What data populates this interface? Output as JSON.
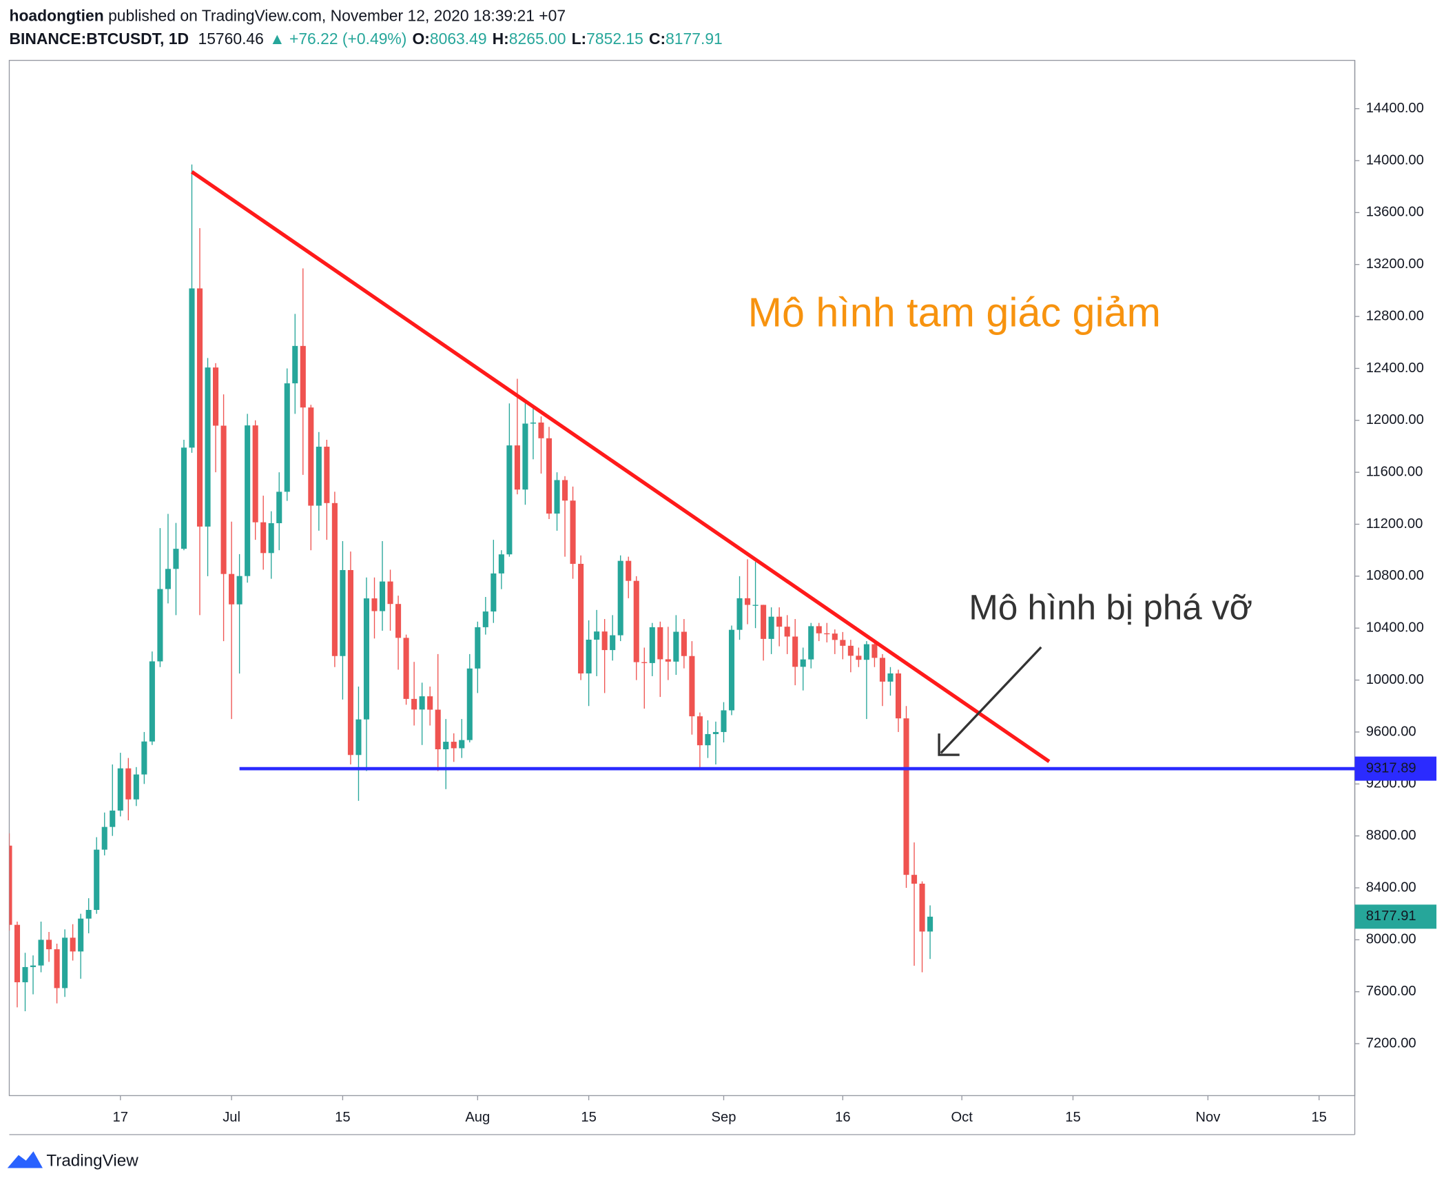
{
  "header": {
    "author": "hoadongtien",
    "published": "published on TradingView.com, November 12, 2020 18:39:21 +07",
    "symbol": "BINANCE:BTCUSDT, 1D",
    "price": "15760.46",
    "change": "▲ +76.22 (+0.49%)",
    "ohlc": [
      {
        "label": "O:",
        "value": "8063.49"
      },
      {
        "label": "H:",
        "value": "8265.00"
      },
      {
        "label": "L:",
        "value": "7852.15"
      },
      {
        "label": "C:",
        "value": "8177.91"
      }
    ]
  },
  "footer": {
    "brand": "TradingView"
  },
  "chart_data": {
    "type": "candlestick",
    "up_color": "#26a69a",
    "down_color": "#ef5350",
    "open": [
      8725,
      8115,
      7673,
      7790,
      7802,
      8000,
      7927,
      7628,
      8016,
      7910,
      8163,
      8230,
      8694,
      8869,
      8995,
      9320,
      9081,
      9273,
      9527,
      10144,
      10701,
      10856,
      11011,
      11790,
      13016,
      11182,
      12407,
      11959,
      10817,
      10583,
      10801,
      11961,
      11215,
      10978,
      11208,
      11450,
      12285,
      12573,
      12099,
      11343,
      11797,
      11363,
      10185,
      10847,
      9423,
      9697,
      10629,
      10531,
      10759,
      10586,
      10325,
      9855,
      9773,
      9875,
      9772,
      9467,
      9525,
      9475,
      9538,
      10089,
      10407,
      10528,
      10821,
      10968,
      11807,
      11467,
      11975,
      11983,
      11862,
      11282,
      11540,
      11382,
      10895,
      10051,
      10311,
      10374,
      10231,
      10345,
      10918,
      10764,
      10138,
      10131,
      10407,
      10160,
      10142,
      10372,
      10185,
      9721,
      9498,
      9584,
      9600,
      9767,
      10387,
      10630,
      10579,
      10579,
      10317,
      10488,
      10411,
      10335,
      10102,
      10159,
      10415,
      10360,
      10358,
      10309,
      10264,
      10187,
      10156,
      10276,
      10171,
      9988,
      10051,
      9705,
      8500,
      8432,
      8063.49
    ],
    "high": [
      8820,
      8140,
      7900,
      7880,
      8140,
      8060,
      7970,
      8080,
      8120,
      8200,
      8320,
      8790,
      8980,
      9350,
      9440,
      9400,
      9330,
      9600,
      10220,
      11170,
      11280,
      11210,
      11850,
      13970,
      13480,
      12480,
      12440,
      12200,
      11220,
      10970,
      12050,
      12000,
      11420,
      11300,
      11600,
      12400,
      12820,
      13170,
      12120,
      11910,
      11850,
      11450,
      11070,
      10990,
      9950,
      10790,
      10790,
      11070,
      10850,
      10650,
      10350,
      10140,
      9980,
      9950,
      10200,
      9700,
      9590,
      9700,
      10200,
      10450,
      10640,
      11080,
      11000,
      12130,
      12320,
      12130,
      12100,
      12030,
      11950,
      11600,
      11570,
      11490,
      10960,
      10460,
      10540,
      10470,
      10500,
      10960,
      10950,
      10800,
      10250,
      10440,
      10450,
      10410,
      10500,
      10470,
      10300,
      9750,
      9690,
      9680,
      9830,
      10420,
      10800,
      10930,
      10910,
      10580,
      10560,
      10560,
      10500,
      10470,
      10250,
      10440,
      10440,
      10440,
      10390,
      10370,
      10310,
      10250,
      10300,
      10300,
      10200,
      10100,
      10080,
      9800,
      8750,
      8450,
      8265
    ],
    "low": [
      8070,
      7480,
      7450,
      7580,
      7750,
      7830,
      7510,
      7560,
      7840,
      7700,
      8050,
      8200,
      8650,
      8800,
      8950,
      8920,
      9030,
      9200,
      9500,
      10100,
      10590,
      10500,
      11000,
      11750,
      10500,
      10800,
      11600,
      10300,
      9700,
      10050,
      10750,
      11080,
      10850,
      10780,
      11000,
      11380,
      12050,
      11580,
      11000,
      11150,
      11080,
      10100,
      9850,
      9350,
      9070,
      9300,
      10320,
      10380,
      10380,
      10080,
      9810,
      9650,
      9500,
      9650,
      9300,
      9160,
      9370,
      9400,
      9520,
      9900,
      10350,
      10440,
      10700,
      10950,
      11430,
      11350,
      11700,
      11590,
      11240,
      11150,
      10950,
      10780,
      10000,
      9800,
      10030,
      9900,
      10150,
      10300,
      10630,
      10000,
      9780,
      10030,
      9870,
      10000,
      10040,
      10090,
      9580,
      9320,
      9400,
      9350,
      9520,
      9730,
      10310,
      10430,
      10400,
      10150,
      10200,
      10260,
      10200,
      9960,
      9920,
      10090,
      10300,
      10290,
      10200,
      10160,
      10060,
      10100,
      9700,
      10100,
      9800,
      9880,
      9600,
      8400,
      7800,
      7750,
      7852.15
    ],
    "close": [
      8115,
      7673,
      7790,
      7802,
      8000,
      7927,
      7628,
      8016,
      7910,
      8163,
      8230,
      8694,
      8869,
      8995,
      9320,
      9081,
      9273,
      9527,
      10144,
      10701,
      10856,
      11011,
      11790,
      13016,
      11182,
      12407,
      11959,
      10817,
      10583,
      10801,
      11961,
      11215,
      10978,
      11208,
      11450,
      12285,
      12573,
      12099,
      11343,
      11797,
      11363,
      10185,
      10847,
      9423,
      9697,
      10629,
      10531,
      10759,
      10586,
      10325,
      9855,
      9773,
      9875,
      9772,
      9467,
      9525,
      9475,
      9538,
      10089,
      10407,
      10528,
      10821,
      10968,
      11807,
      11467,
      11975,
      11983,
      11862,
      11282,
      11540,
      11382,
      10895,
      10051,
      10311,
      10374,
      10231,
      10345,
      10918,
      10764,
      10138,
      10131,
      10407,
      10160,
      10142,
      10372,
      10185,
      9721,
      9498,
      9584,
      9600,
      9767,
      10387,
      10630,
      10579,
      10579,
      10317,
      10488,
      10411,
      10335,
      10102,
      10159,
      10415,
      10360,
      10358,
      10309,
      10264,
      10187,
      10156,
      10276,
      10171,
      9988,
      10051,
      9705,
      8500,
      8432,
      8063.49,
      8177.91
    ],
    "xlim": [
      0,
      169.5
    ],
    "xticks": [
      {
        "value": 14,
        "label": "17"
      },
      {
        "value": 28,
        "label": "Jul"
      },
      {
        "value": 42,
        "label": "15"
      },
      {
        "value": 59,
        "label": "Aug"
      },
      {
        "value": 73,
        "label": "15"
      },
      {
        "value": 90,
        "label": "Sep"
      },
      {
        "value": 105,
        "label": "16"
      },
      {
        "value": 120,
        "label": "Oct"
      },
      {
        "value": 134,
        "label": "15"
      },
      {
        "value": 151,
        "label": "Nov"
      },
      {
        "value": 165,
        "label": "15"
      }
    ],
    "ylim": [
      6800,
      14772
    ],
    "yticks": [
      {
        "value": 7200,
        "label": "7200.00"
      },
      {
        "value": 7600,
        "label": "7600.00"
      },
      {
        "value": 8000,
        "label": "8000.00"
      },
      {
        "value": 8400,
        "label": "8400.00"
      },
      {
        "value": 8800,
        "label": "8800.00"
      },
      {
        "value": 9200,
        "label": "9200.00"
      },
      {
        "value": 9600,
        "label": "9600.00"
      },
      {
        "value": 10000,
        "label": "10000.00"
      },
      {
        "value": 10400,
        "label": "10400.00"
      },
      {
        "value": 10800,
        "label": "10800.00"
      },
      {
        "value": 11200,
        "label": "11200.00"
      },
      {
        "value": 11600,
        "label": "11600.00"
      },
      {
        "value": 12000,
        "label": "12000.00"
      },
      {
        "value": 12400,
        "label": "12400.00"
      },
      {
        "value": 12800,
        "label": "12800.00"
      },
      {
        "value": 13200,
        "label": "13200.00"
      },
      {
        "value": 13600,
        "label": "13600.00"
      },
      {
        "value": 14000,
        "label": "14000.00"
      },
      {
        "value": 14400,
        "label": "14400.00"
      }
    ],
    "trendline": {
      "from": [
        23,
        13914
      ],
      "to": [
        131,
        9373
      ],
      "color": "#ff1a1a"
    },
    "support": {
      "value": 9317.89,
      "from": 29,
      "color": "#2b2bff"
    },
    "annotations": [
      {
        "text": "Mô hình tam giác giảm",
        "color": "#f7930f"
      },
      {
        "text": "Mô hình bị phá vỡ",
        "color": "#333333"
      }
    ]
  }
}
